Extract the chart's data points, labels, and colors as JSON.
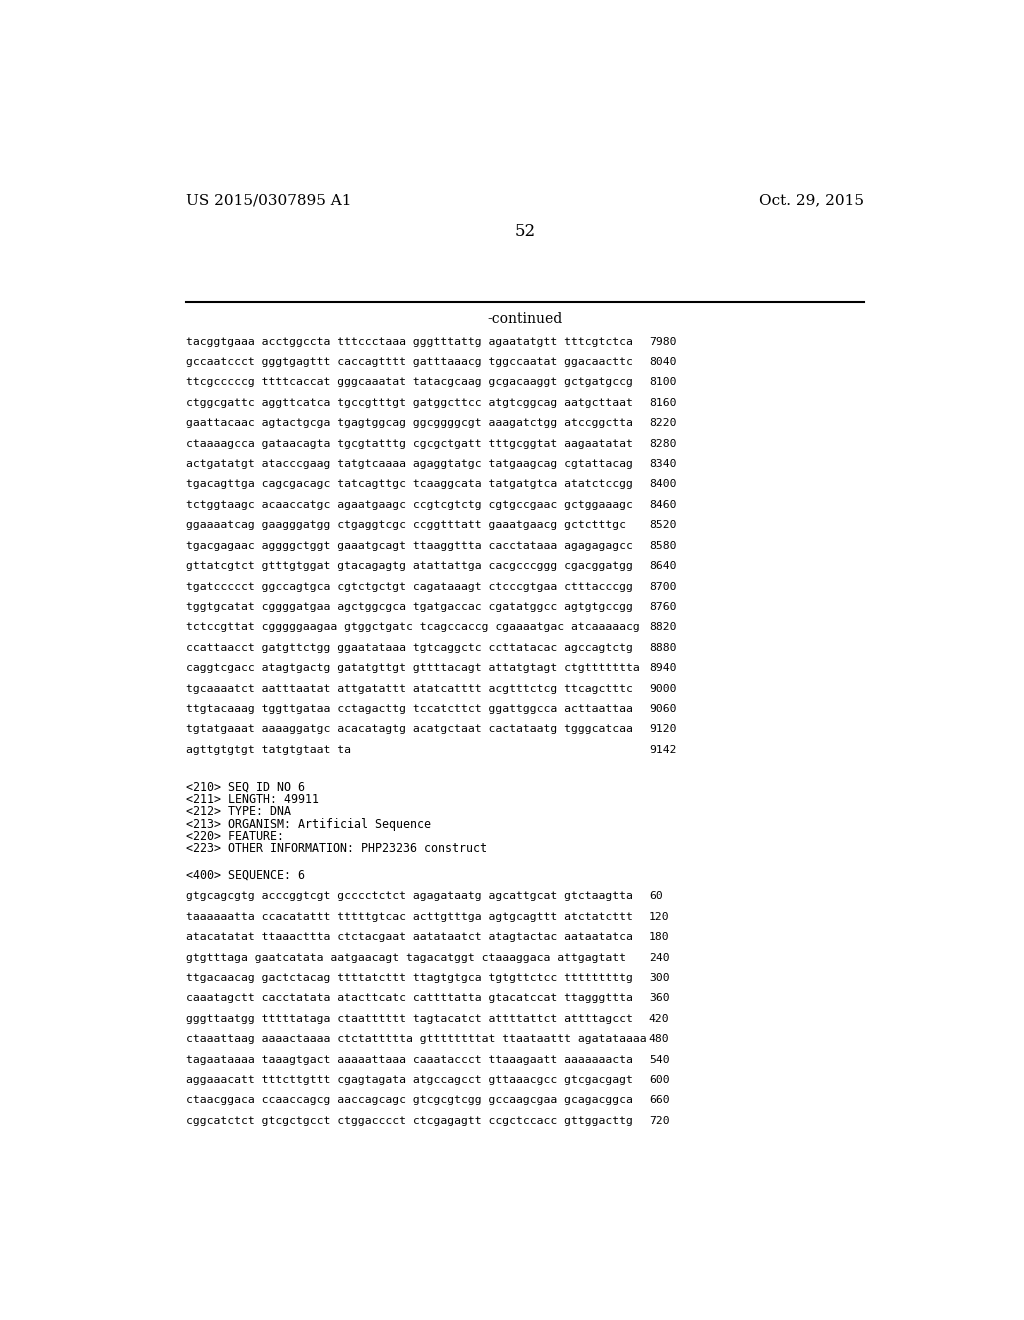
{
  "header_left": "US 2015/0307895 A1",
  "header_right": "Oct. 29, 2015",
  "page_number": "52",
  "continued_label": "-continued",
  "sequence_lines_top": [
    [
      "tacggtgaaa acctggccta tttccctaaa gggtttattg agaatatgtt tttcgtctca",
      "7980"
    ],
    [
      "gccaatccct gggtgagttt caccagtttt gatttaaacg tggccaatat ggacaacttc",
      "8040"
    ],
    [
      "ttcgcccccg ttttcaccat gggcaaatat tatacgcaag gcgacaaggt gctgatgccg",
      "8100"
    ],
    [
      "ctggcgattc aggttcatca tgccgtttgt gatggcttcc atgtcggcag aatgcttaat",
      "8160"
    ],
    [
      "gaattacaac agtactgcga tgagtggcag ggcggggcgt aaagatctgg atccggctta",
      "8220"
    ],
    [
      "ctaaaagcca gataacagta tgcgtatttg cgcgctgatt tttgcggtat aagaatatat",
      "8280"
    ],
    [
      "actgatatgt atacccgaag tatgtcaaaa agaggtatgc tatgaagcag cgtattacag",
      "8340"
    ],
    [
      "tgacagttga cagcgacagc tatcagttgc tcaaggcata tatgatgtca atatctccgg",
      "8400"
    ],
    [
      "tctggtaagc acaaccatgc agaatgaagc ccgtcgtctg cgtgccgaac gctggaaagc",
      "8460"
    ],
    [
      "ggaaaatcag gaagggatgg ctgaggtcgc ccggtttatt gaaatgaacg gctctttgc",
      "8520"
    ],
    [
      "tgacgagaac aggggctggt gaaatgcagt ttaaggttta cacctataaa agagagagcc",
      "8580"
    ],
    [
      "gttatcgtct gtttgtggat gtacagagtg atattattga cacgcccggg cgacggatgg",
      "8640"
    ],
    [
      "tgatccccct ggccagtgca cgtctgctgt cagataaagt ctcccgtgaa ctttacccgg",
      "8700"
    ],
    [
      "tggtgcatat cggggatgaa agctggcgca tgatgaccac cgatatggcc agtgtgccgg",
      "8760"
    ],
    [
      "tctccgttat cgggggaagaa gtggctgatc tcagccaccg cgaaaatgac atcaaaaacg",
      "8820"
    ],
    [
      "ccattaacct gatgttctgg ggaatataaa tgtcaggctc ccttatacac agccagtctg",
      "8880"
    ],
    [
      "caggtcgacc atagtgactg gatatgttgt gttttacagt attatgtagt ctgttttttta",
      "8940"
    ],
    [
      "tgcaaaatct aatttaatat attgatattt atatcatttt acgtttctcg ttcagctttc",
      "9000"
    ],
    [
      "ttgtacaaag tggttgataa cctagacttg tccatcttct ggattggcca acttaattaa",
      "9060"
    ],
    [
      "tgtatgaaat aaaaggatgc acacatagtg acatgctaat cactataatg tgggcatcaa",
      "9120"
    ],
    [
      "agttgtgtgt tatgtgtaat ta",
      "9142"
    ]
  ],
  "metadata_lines": [
    "<210> SEQ ID NO 6",
    "<211> LENGTH: 49911",
    "<212> TYPE: DNA",
    "<213> ORGANISM: Artificial Sequence",
    "<220> FEATURE:",
    "<223> OTHER INFORMATION: PHP23236 construct"
  ],
  "seq400_label": "<400> SEQUENCE: 6",
  "sequence_lines_bottom": [
    [
      "gtgcagcgtg acccggtcgt gcccctctct agagataatg agcattgcat gtctaagtta",
      "60"
    ],
    [
      "taaaaaatta ccacatattt tttttgtcac acttgtttga agtgcagttt atctatcttt",
      "120"
    ],
    [
      "atacatatat ttaaacttta ctctacgaat aatataatct atagtactac aataatatca",
      "180"
    ],
    [
      "gtgtttaga gaatcatata aatgaacagt tagacatggt ctaaaggaca attgagtatt",
      "240"
    ],
    [
      "ttgacaacag gactctacag ttttatcttt ttagtgtgca tgtgttctcc tttttttttg",
      "300"
    ],
    [
      "caaatagctt cacctatata atacttcatc cattttatta gtacatccat ttagggttta",
      "360"
    ],
    [
      "gggttaatgg tttttataga ctaatttttt tagtacatct attttattct attttagcct",
      "420"
    ],
    [
      "ctaaattaag aaaactaaaa ctctattttta gttttttttat ttaataattt agatataaaa",
      "480"
    ],
    [
      "tagaataaaa taaagtgact aaaaattaaa caaataccct ttaaagaatt aaaaaaacta",
      "540"
    ],
    [
      "aggaaacatt tttcttgttt cgagtagata atgccagcct gttaaacgcc gtcgacgagt",
      "600"
    ],
    [
      "ctaacggaca ccaaccagcg aaccagcagc gtcgcgtcgg gccaagcgaa gcagacggca",
      "660"
    ],
    [
      "cggcatctct gtcgctgcct ctggacccct ctcgagagtt ccgctccacc gttggacttg",
      "720"
    ]
  ],
  "bg_color": "#ffffff",
  "text_color": "#000000",
  "font_size_header": 11,
  "font_size_page": 12,
  "font_size_continued": 10,
  "mono_size": 8.2,
  "meta_size": 8.4
}
